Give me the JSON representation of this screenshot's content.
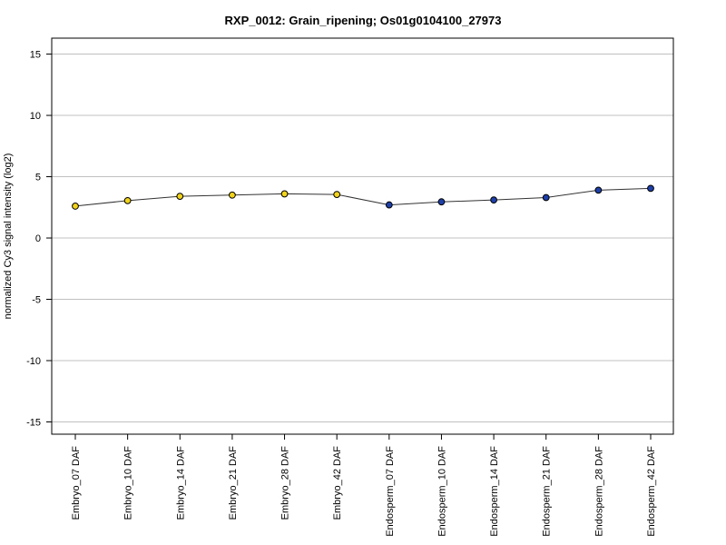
{
  "chart_data": {
    "type": "line",
    "title": "RXP_0012: Grain_ripening; Os01g0104100_27973",
    "xlabel": "",
    "ylabel": "normalized Cy3 signal intensity (log2)",
    "ylim": [
      -16,
      16.3
    ],
    "yticks": [
      -15,
      -10,
      -5,
      0,
      5,
      10,
      15
    ],
    "grid": "horizontal",
    "categories": [
      "Embryo_07 DAF",
      "Embryo_10 DAF",
      "Embryo_14 DAF",
      "Embryo_21 DAF",
      "Embryo_28 DAF",
      "Embryo_42 DAF",
      "Endosperm_07 DAF",
      "Endosperm_10 DAF",
      "Endosperm_14 DAF",
      "Endosperm_21 DAF",
      "Endosperm_28 DAF",
      "Endosperm_42 DAF"
    ],
    "series": [
      {
        "values": [
          2.6,
          3.05,
          3.4,
          3.5,
          3.6,
          3.55,
          2.7,
          2.95,
          3.1,
          3.3,
          3.9,
          4.05
        ],
        "point_colors": [
          "#f2d31b",
          "#f2d31b",
          "#f2d31b",
          "#f2d31b",
          "#f2d31b",
          "#f2d31b",
          "#1f3fa8",
          "#1f3fa8",
          "#1f3fa8",
          "#1f3fa8",
          "#1f3fa8",
          "#1f3fa8"
        ]
      }
    ],
    "colors": {
      "line": "#333333",
      "grid": "#c0c0c0",
      "frame": "#000000"
    }
  }
}
